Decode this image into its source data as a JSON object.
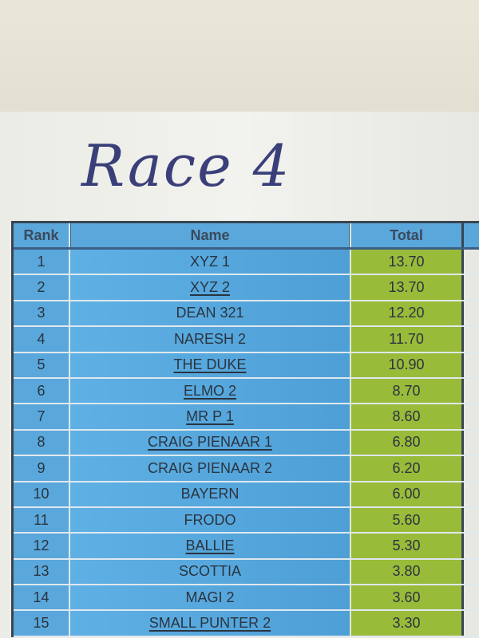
{
  "heading": "Race 4",
  "columns": {
    "rank": "Rank",
    "name": "Name",
    "total": "Total"
  },
  "colors": {
    "name_cell": "#5aa7db",
    "total_cell": "#98bb3a",
    "border": "#3a4550"
  },
  "rows": [
    {
      "rank": "1",
      "name": "XYZ 1",
      "total": "13.70",
      "underlined": false
    },
    {
      "rank": "2",
      "name": "XYZ 2",
      "total": "13.70",
      "underlined": true
    },
    {
      "rank": "3",
      "name": "DEAN 321",
      "total": "12.20",
      "underlined": false
    },
    {
      "rank": "4",
      "name": "NARESH 2",
      "total": "11.70",
      "underlined": false
    },
    {
      "rank": "5",
      "name": "THE DUKE",
      "total": "10.90",
      "underlined": true
    },
    {
      "rank": "6",
      "name": "ELMO 2",
      "total": "8.70",
      "underlined": true
    },
    {
      "rank": "7",
      "name": "MR P 1",
      "total": "8.60",
      "underlined": true
    },
    {
      "rank": "8",
      "name": "CRAIG PIENAAR 1",
      "total": "6.80",
      "underlined": true
    },
    {
      "rank": "9",
      "name": "CRAIG PIENAAR 2",
      "total": "6.20",
      "underlined": false
    },
    {
      "rank": "10",
      "name": "BAYERN",
      "total": "6.00",
      "underlined": false
    },
    {
      "rank": "11",
      "name": "FRODO",
      "total": "5.60",
      "underlined": false
    },
    {
      "rank": "12",
      "name": "BALLIE",
      "total": "5.30",
      "underlined": true
    },
    {
      "rank": "13",
      "name": "SCOTTIA",
      "total": "3.80",
      "underlined": false
    },
    {
      "rank": "14",
      "name": "MAGI 2",
      "total": "3.60",
      "underlined": false
    },
    {
      "rank": "15",
      "name": "SMALL PUNTER 2",
      "total": "3.30",
      "underlined": true
    }
  ]
}
